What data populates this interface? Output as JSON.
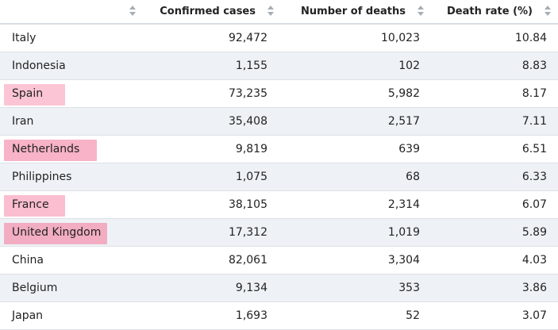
{
  "table": {
    "headers": [
      {
        "label": "",
        "sort_icon": "sort-icon"
      },
      {
        "label": "Confirmed cases",
        "sort_icon": "sort-icon"
      },
      {
        "label": "Number of deaths",
        "sort_icon": "sort-icon"
      },
      {
        "label": "Death rate (%)",
        "sort_icon": "sort-icon"
      }
    ],
    "rows": [
      {
        "country": "Italy",
        "cases": "92,472",
        "deaths": "10,023",
        "rate": "10.84",
        "highlight": null
      },
      {
        "country": "Indonesia",
        "cases": "1,155",
        "deaths": "102",
        "rate": "8.83",
        "highlight": null
      },
      {
        "country": "Spain",
        "cases": "73,235",
        "deaths": "5,982",
        "rate": "8.17",
        "highlight": "#fcc5d5"
      },
      {
        "country": "Iran",
        "cases": "35,408",
        "deaths": "2,517",
        "rate": "7.11",
        "highlight": null
      },
      {
        "country": "Netherlands",
        "cases": "9,819",
        "deaths": "639",
        "rate": "6.51",
        "highlight": "#f8b3c8"
      },
      {
        "country": "Philippines",
        "cases": "1,075",
        "deaths": "68",
        "rate": "6.33",
        "highlight": null
      },
      {
        "country": "France",
        "cases": "38,105",
        "deaths": "2,314",
        "rate": "6.07",
        "highlight": "#fbbdd0"
      },
      {
        "country": "United Kingdom",
        "cases": "17,312",
        "deaths": "1,019",
        "rate": "5.89",
        "highlight": "#f2adc2"
      },
      {
        "country": "China",
        "cases": "82,061",
        "deaths": "3,304",
        "rate": "4.03",
        "highlight": null
      },
      {
        "country": "Belgium",
        "cases": "9,134",
        "deaths": "353",
        "rate": "3.86",
        "highlight": null
      },
      {
        "country": "Japan",
        "cases": "1,693",
        "deaths": "52",
        "rate": "3.07",
        "highlight": null
      }
    ]
  },
  "colors": {
    "row_alt": "#eef2f6",
    "header_border": "#d9dde3",
    "sort_icon": "#a7adb5"
  }
}
